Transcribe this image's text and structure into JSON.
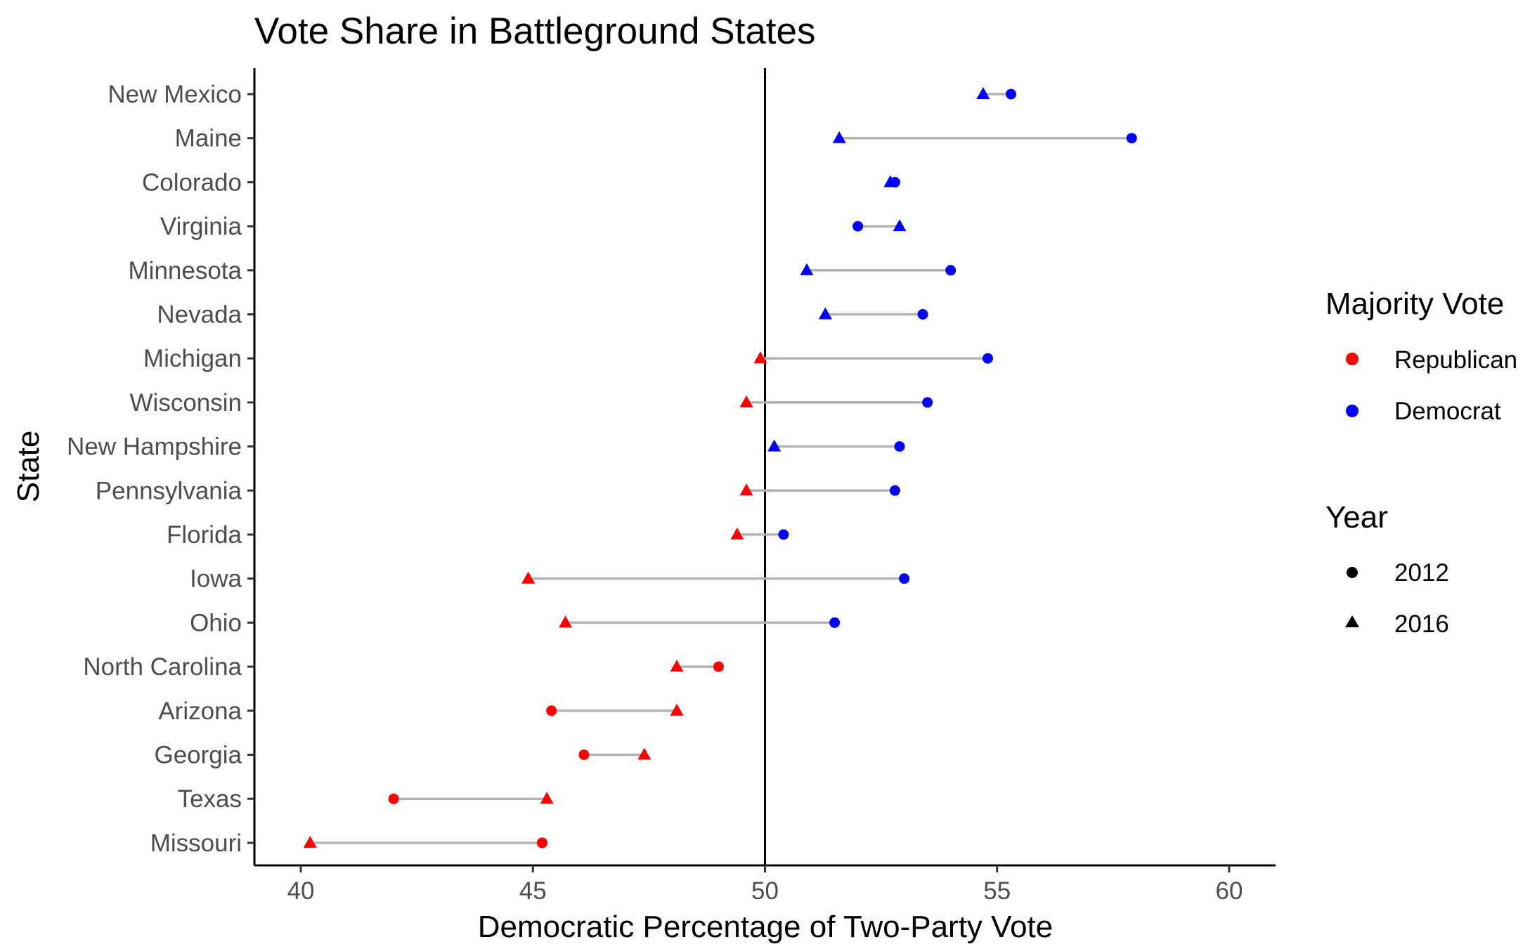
{
  "chart_data": {
    "type": "scatter",
    "subtype": "dumbbell",
    "title": "Vote Share in Battleground States",
    "xlabel": "Democratic Percentage of Two-Party Vote",
    "ylabel": "State",
    "xlim": [
      39,
      61
    ],
    "xticks": [
      40,
      45,
      50,
      55,
      60
    ],
    "reference_line_x": 50,
    "grid": false,
    "legend_position": "right",
    "colors": {
      "Republican": "#ff0000",
      "Democrat": "#0000ff",
      "connector": "#b3b3b3",
      "reference": "#000000"
    },
    "legend": {
      "color_title": "Majority Vote",
      "color_items": [
        "Republican",
        "Democrat"
      ],
      "shape_title": "Year",
      "shape_items": [
        "2012",
        "2016"
      ]
    },
    "states": [
      {
        "state": "New Mexico",
        "v2012": 55.3,
        "v2016": 54.7
      },
      {
        "state": "Maine",
        "v2012": 57.9,
        "v2016": 51.6
      },
      {
        "state": "Colorado",
        "v2012": 52.8,
        "v2016": 52.7
      },
      {
        "state": "Virginia",
        "v2012": 52.0,
        "v2016": 52.9
      },
      {
        "state": "Minnesota",
        "v2012": 54.0,
        "v2016": 50.9
      },
      {
        "state": "Nevada",
        "v2012": 53.4,
        "v2016": 51.3
      },
      {
        "state": "Michigan",
        "v2012": 54.8,
        "v2016": 49.9
      },
      {
        "state": "Wisconsin",
        "v2012": 53.5,
        "v2016": 49.6
      },
      {
        "state": "New Hampshire",
        "v2012": 52.9,
        "v2016": 50.2
      },
      {
        "state": "Pennsylvania",
        "v2012": 52.8,
        "v2016": 49.6
      },
      {
        "state": "Florida",
        "v2012": 50.4,
        "v2016": 49.4
      },
      {
        "state": "Iowa",
        "v2012": 53.0,
        "v2016": 44.9
      },
      {
        "state": "Ohio",
        "v2012": 51.5,
        "v2016": 45.7
      },
      {
        "state": "North Carolina",
        "v2012": 49.0,
        "v2016": 48.1
      },
      {
        "state": "Arizona",
        "v2012": 45.4,
        "v2016": 48.1
      },
      {
        "state": "Georgia",
        "v2012": 46.1,
        "v2016": 47.4
      },
      {
        "state": "Texas",
        "v2012": 42.0,
        "v2016": 45.3
      },
      {
        "state": "Missouri",
        "v2012": 45.2,
        "v2016": 40.2
      }
    ]
  }
}
